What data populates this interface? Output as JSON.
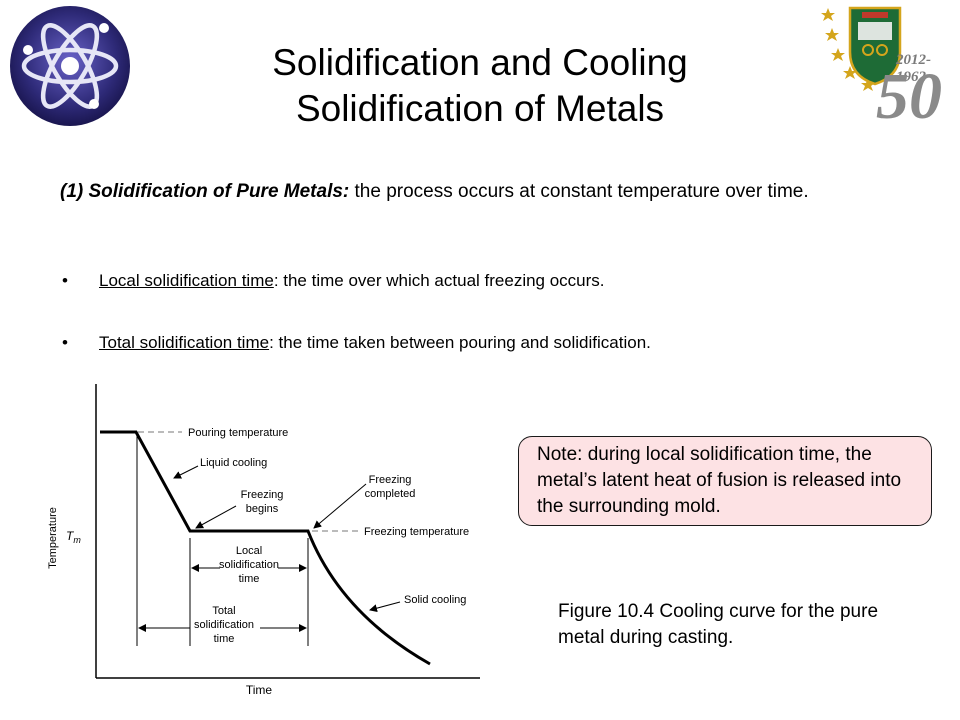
{
  "slide": {
    "title_line1": "Solidification and Cooling",
    "title_line2": "Solidification of Metals",
    "intro_label": "(1) Solidification of Pure Metals:",
    "intro_text": " the process occurs at constant temperature over time.",
    "bullets": [
      {
        "term": "Local solidification time",
        "rest": ": the time over which actual freezing occurs."
      },
      {
        "term": "Total solidification time",
        "rest": ": the time taken between pouring and solidification."
      }
    ],
    "note": "Note: during local solidification time, the metal’s latent heat of fusion is released into the surrounding mold.",
    "caption": "Figure 10.4 Cooling curve for the pure metal during casting."
  },
  "logos": {
    "left_icon": "atom-icon",
    "right_icon": "university-crest-icon",
    "right_years": "2012-1962",
    "right_number": "50"
  },
  "figure": {
    "ylabel": "Temperature",
    "xlabel": "Time",
    "tm_label_main": "T",
    "tm_label_sub": "m",
    "labels": {
      "pouring": "Pouring temperature",
      "liquid": "Liquid cooling",
      "begins_1": "Freezing",
      "begins_2": "begins",
      "completed_1": "Freezing",
      "completed_2": "completed",
      "freezing_temp": "Freezing temperature",
      "local_1": "Local",
      "local_2": "solidification",
      "local_3": "time",
      "solid": "Solid cooling",
      "total_1": "Total",
      "total_2": "solidification",
      "total_3": "time"
    }
  },
  "colors": {
    "note_bg": "#fde2e4",
    "logo_purple": "#2e2a78",
    "crest_green": "#1e6b36",
    "gold": "#d4a51c"
  }
}
